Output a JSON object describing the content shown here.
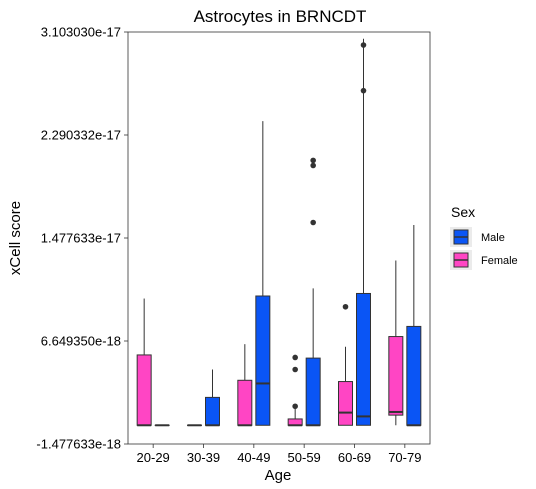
{
  "chart_data": {
    "type": "boxplot",
    "title": "Astrocytes in BRNCDT",
    "xlabel": "Age",
    "ylabel": "xCell score",
    "ylim": [
      -1.477633e-18,
      3.10303e-17
    ],
    "y_ticks": [
      -1.477633e-18,
      6.64935e-18,
      1.477633e-17,
      2.290332e-17,
      3.10303e-17
    ],
    "y_tick_labels": [
      "-1.477633e-18",
      "6.649350e-18",
      "1.477633e-17",
      "2.290332e-17",
      "3.103030e-17"
    ],
    "categories": [
      "20-29",
      "30-39",
      "40-49",
      "50-59",
      "60-69",
      "70-79"
    ],
    "legend": {
      "title": "Sex",
      "placement": "right",
      "entries": [
        {
          "name": "Male",
          "color": "#0a55f5"
        },
        {
          "name": "Female",
          "color": "#ff45c4"
        }
      ]
    },
    "series": [
      {
        "name": "Female",
        "color": "#ff45c4",
        "boxes": [
          {
            "category": "20-29",
            "min": 0,
            "q1": 0,
            "median": 0,
            "q3": 5.55e-18,
            "max": 1e-17,
            "outliers": []
          },
          {
            "category": "30-39",
            "min": 0,
            "q1": 0,
            "median": 0,
            "q3": 0,
            "max": 0,
            "outliers": []
          },
          {
            "category": "40-49",
            "min": 0,
            "q1": 0,
            "median": 0,
            "q3": 3.55e-18,
            "max": 6.4e-18,
            "outliers": []
          },
          {
            "category": "50-59",
            "min": 0,
            "q1": 0,
            "median": 0,
            "q3": 5e-19,
            "max": 1.35e-18,
            "outliers": [
              1.5e-18,
              4.4e-18,
              5.35e-18
            ]
          },
          {
            "category": "60-69",
            "min": 0,
            "q1": 0,
            "median": 1e-18,
            "q3": 3.45e-18,
            "max": 6.2e-18,
            "outliers": [
              9.35e-18
            ]
          },
          {
            "category": "70-79",
            "min": 0,
            "q1": 8e-19,
            "median": 1.05e-18,
            "q3": 7e-18,
            "max": 1.3e-17,
            "outliers": []
          }
        ]
      },
      {
        "name": "Male",
        "color": "#0a55f5",
        "boxes": [
          {
            "category": "20-29",
            "min": 0,
            "q1": 0,
            "median": 0,
            "q3": 0,
            "max": 0,
            "outliers": []
          },
          {
            "category": "30-39",
            "min": 0,
            "q1": 0,
            "median": 0,
            "q3": 2.2e-18,
            "max": 4.4e-18,
            "outliers": []
          },
          {
            "category": "40-49",
            "min": 0,
            "q1": 0,
            "median": 3.3e-18,
            "q3": 1.02e-17,
            "max": 2.4e-17,
            "outliers": []
          },
          {
            "category": "50-59",
            "min": 0,
            "q1": 0,
            "median": 0,
            "q3": 5.3e-18,
            "max": 1.08e-17,
            "outliers": [
              1.6e-17,
              2.05e-17,
              2.09e-17
            ]
          },
          {
            "category": "60-69",
            "min": 0,
            "q1": 0,
            "median": 7e-19,
            "q3": 1.04e-17,
            "max": 3.05e-17,
            "outliers": [
              2.64e-17,
              3e-17
            ]
          },
          {
            "category": "70-79",
            "min": 0,
            "q1": 0,
            "median": 0,
            "q3": 7.8e-18,
            "max": 1.58e-17,
            "outliers": []
          }
        ]
      }
    ]
  }
}
